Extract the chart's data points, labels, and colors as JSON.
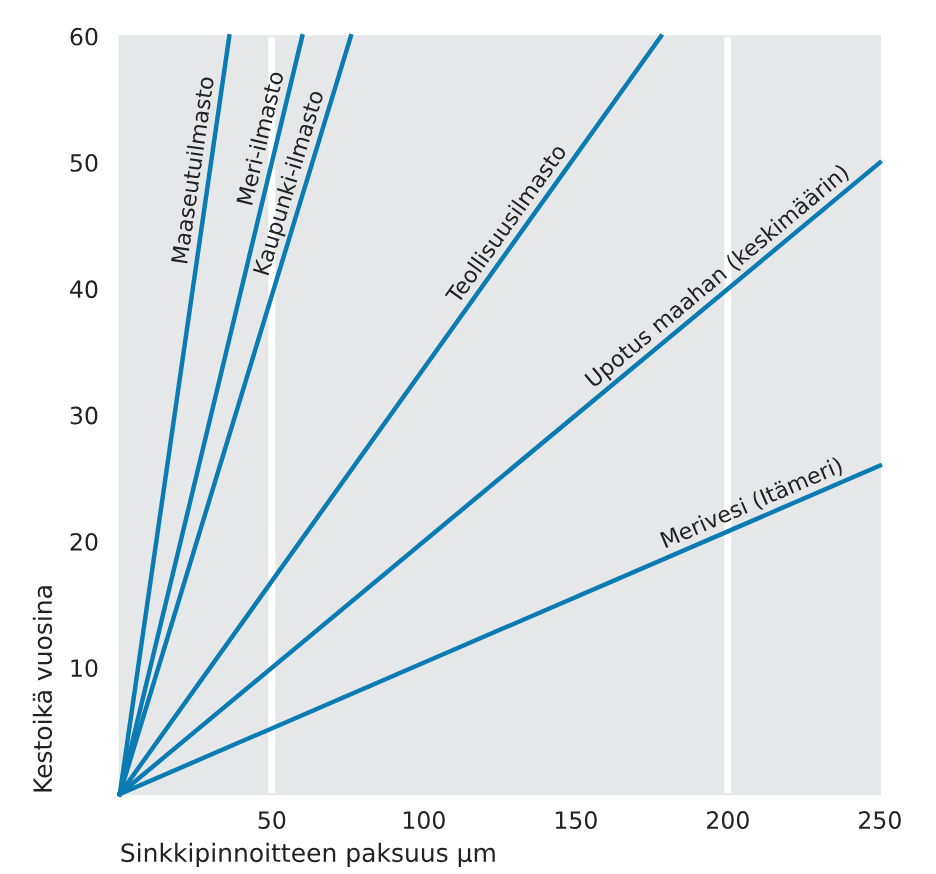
{
  "chart_data": {
    "type": "line",
    "xlabel": "Sinkkipinnoitteen paksuus µm",
    "ylabel": "Kestoikä vuosina",
    "xlim": [
      0,
      250
    ],
    "ylim": [
      0,
      60
    ],
    "xticks": [
      50,
      100,
      150,
      200,
      250
    ],
    "yticks": [
      10,
      20,
      30,
      40,
      50,
      60
    ],
    "grid": false,
    "legend": false,
    "marker": "none",
    "line_style": "solid",
    "ref_lines": [
      {
        "axis": "x",
        "value": 50,
        "color": "#ffffff"
      },
      {
        "axis": "x",
        "value": 200,
        "color": "#ffffff"
      }
    ],
    "series": [
      {
        "name": "Maaseutuilmasto",
        "color": "#0a7bb3",
        "x": [
          0,
          36
        ],
        "values": [
          0,
          60
        ]
      },
      {
        "name": "Meri-ilmasto",
        "color": "#0a7bb3",
        "x": [
          0,
          60
        ],
        "values": [
          0,
          60
        ]
      },
      {
        "name": "Kaupunki-ilmasto",
        "color": "#0a7bb3",
        "x": [
          0,
          76
        ],
        "values": [
          0,
          60
        ]
      },
      {
        "name": "Teollisuusilmasto",
        "color": "#0a7bb3",
        "x": [
          0,
          178
        ],
        "values": [
          0,
          60
        ]
      },
      {
        "name": "Upotus maahan (keskimäärin)",
        "color": "#0a7bb3",
        "x": [
          0,
          250
        ],
        "values": [
          0,
          50
        ]
      },
      {
        "name": "Merivesi (Itämeri)",
        "color": "#0a7bb3",
        "x": [
          0,
          250
        ],
        "values": [
          0,
          26
        ]
      }
    ]
  }
}
